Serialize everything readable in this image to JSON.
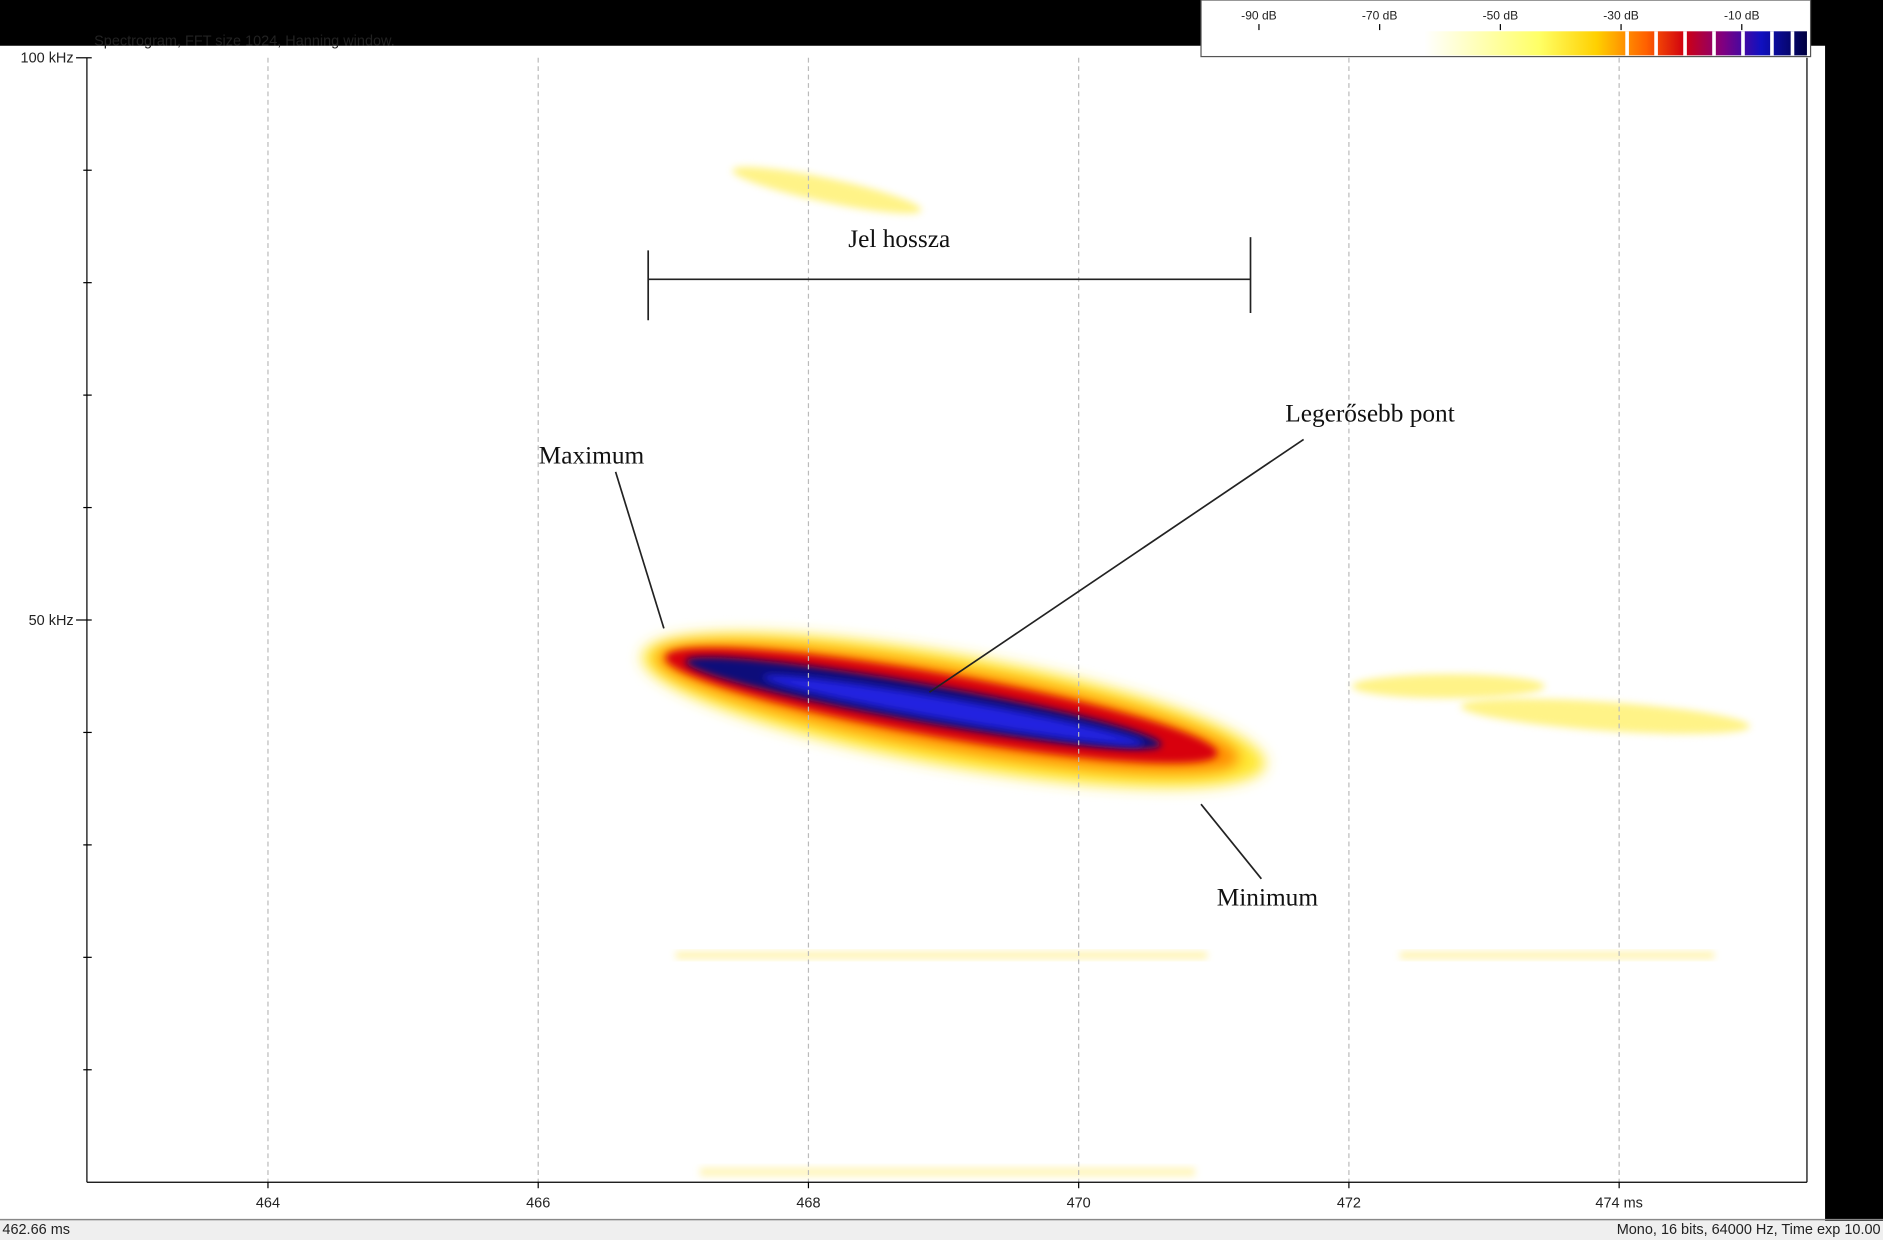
{
  "chart_data": {
    "type": "spectrogram",
    "title": "Spectrogram, FFT size 1024, Hanning window.",
    "xlim": [
      462.66,
      475.39
    ],
    "xticks": [
      464,
      466,
      468,
      470,
      472,
      {
        "value": 474,
        "label": "474 ms"
      }
    ],
    "ylim": [
      0,
      100
    ],
    "yticks": [
      {
        "value": 50,
        "label": "50 kHz"
      },
      {
        "value": 100,
        "label": "100 kHz"
      }
    ],
    "y_minor_ticks": [
      10,
      20,
      30,
      40,
      60,
      70,
      80,
      90
    ],
    "grid": true,
    "clim": [
      -100,
      0
    ],
    "colorbar_ticks": [
      {
        "value": -90,
        "label": "-90 dB"
      },
      {
        "value": -70,
        "label": "-70 dB"
      },
      {
        "value": -50,
        "label": "-50 dB"
      },
      {
        "value": -30,
        "label": "-30 dB"
      },
      {
        "value": -10,
        "label": "-10 dB"
      }
    ],
    "annotations": [
      "Jel hossza",
      "Maximum",
      "Legerősebb pont",
      "Minimum"
    ],
    "status_left": "462.66 ms",
    "status_right": "Mono, 16 bits, 64000 Hz, Time exp 10.00"
  }
}
